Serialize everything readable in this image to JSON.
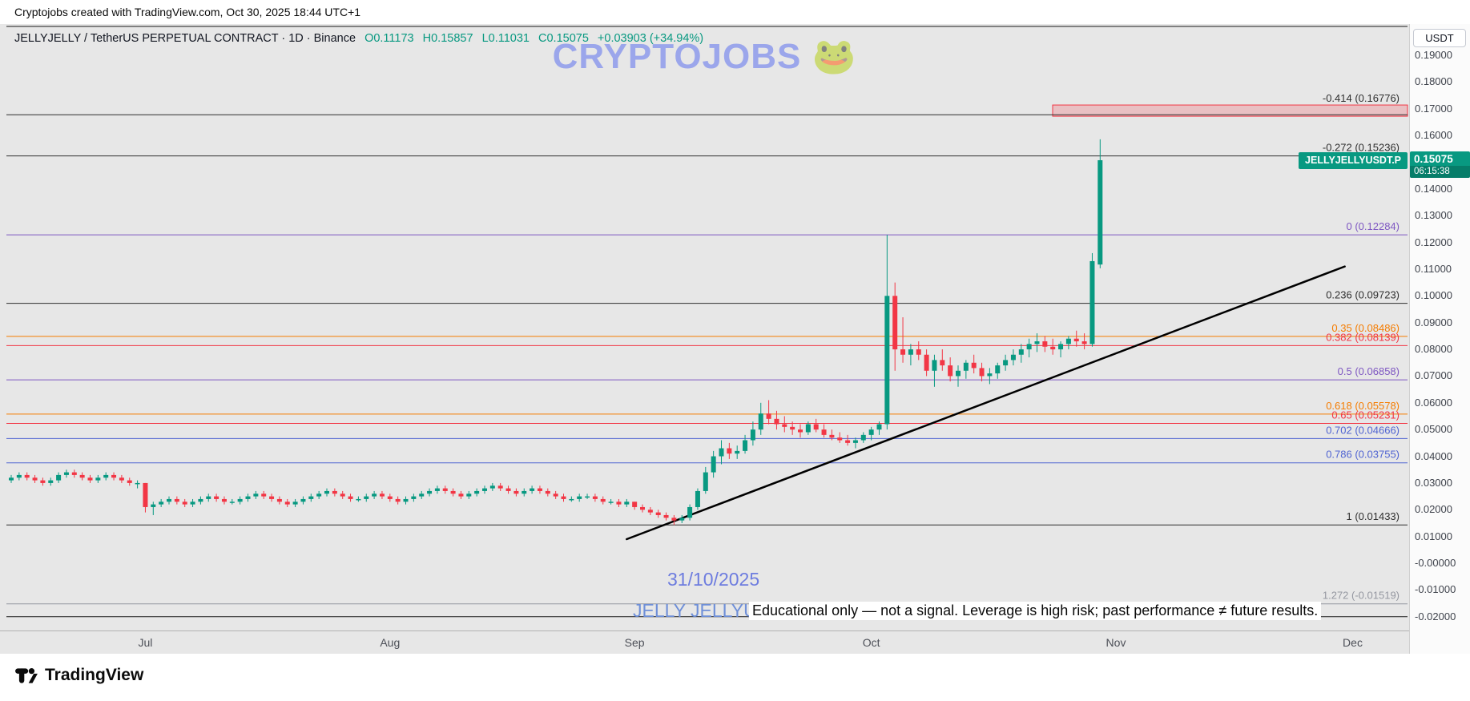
{
  "topbar": {
    "caption": "Cryptojobs created with TradingView.com, Oct 30, 2025 18:44 UTC+1"
  },
  "legend": {
    "symbol": "JELLYJELLY / TetherUS PERPETUAL CONTRACT · 1D · Binance",
    "o": "O0.11173",
    "h": "H0.15857",
    "l": "L0.11031",
    "c": "C0.15075",
    "change": "+0.03903 (+34.94%)"
  },
  "watermark_text": "CRYPTOJOBS 🐸",
  "annotations": {
    "date_label": "31/10/2025",
    "symbol_label": "JELLY JELLYUSDT.P",
    "disclaimer": "Educational only — not a signal. Leverage is high risk; past performance ≠ future results."
  },
  "price_badge": {
    "name": "JELLYJELLYUSDT.P",
    "price": "0.15075",
    "countdown": "06:15:38",
    "color": "#089981"
  },
  "price_axis": {
    "currency": "USDT",
    "ticks": [
      "0.19000",
      "0.18000",
      "0.17000",
      "0.16000",
      "0.14000",
      "0.13000",
      "0.12000",
      "0.11000",
      "0.10000",
      "0.09000",
      "0.08000",
      "0.07000",
      "0.06000",
      "0.05000",
      "0.04000",
      "0.03000",
      "0.02000",
      "0.01000",
      "-0.00000",
      "-0.01000",
      "-0.02000"
    ]
  },
  "footer": {
    "brand": "TradingView"
  },
  "chart_data": {
    "type": "candlestick",
    "title": "JELLYJELLY / TetherUS PERPETUAL CONTRACT · 1D · Binance",
    "timeframe": "1D",
    "exchange": "Binance",
    "price_range_visible": [
      -0.0235,
      0.2015
    ],
    "ohlc_last": {
      "open": 0.11173,
      "high": 0.15857,
      "low": 0.11031,
      "close": 0.15075,
      "change_abs": 0.03903,
      "change_pct": 34.94
    },
    "colors": {
      "up": "#089981",
      "down": "#f23645"
    },
    "x_axis": {
      "labels": [
        {
          "label": "Jul",
          "candle_index": 17
        },
        {
          "label": "Aug",
          "candle_index": 48
        },
        {
          "label": "Sep",
          "candle_index": 79
        },
        {
          "label": "Oct",
          "candle_index": 109
        },
        {
          "label": "Nov",
          "candle_index": 140
        },
        {
          "label": "Dec",
          "candle_index": 170
        }
      ]
    },
    "fib_levels": [
      {
        "label": "-0.414 (0.16776)",
        "ratio": -0.414,
        "price": 0.16776,
        "color": "#2f2f2f"
      },
      {
        "label": "-0.272 (0.15236)",
        "ratio": -0.272,
        "price": 0.15236,
        "color": "#2f2f2f"
      },
      {
        "label": "0 (0.12284)",
        "ratio": 0,
        "price": 0.12284,
        "color": "#7e57c2"
      },
      {
        "label": "0.236 (0.09723)",
        "ratio": 0.236,
        "price": 0.09723,
        "color": "#2f2f2f"
      },
      {
        "label": "0.35 (0.08486)",
        "ratio": 0.35,
        "price": 0.08486,
        "color": "#f57c00"
      },
      {
        "label": "0.382 (0.08139)",
        "ratio": 0.382,
        "price": 0.08139,
        "color": "#f23645"
      },
      {
        "label": "0.5 (0.06858)",
        "ratio": 0.5,
        "price": 0.06858,
        "color": "#7e57c2"
      },
      {
        "label": "0.618 (0.05578)",
        "ratio": 0.618,
        "price": 0.05578,
        "color": "#f57c00"
      },
      {
        "label": "0.65 (0.05231)",
        "ratio": 0.65,
        "price": 0.05231,
        "color": "#f23645"
      },
      {
        "label": "0.702 (0.04666)",
        "ratio": 0.702,
        "price": 0.04666,
        "color": "#4f63d2"
      },
      {
        "label": "0.786 (0.03755)",
        "ratio": 0.786,
        "price": 0.03755,
        "color": "#4f63d2"
      },
      {
        "label": "1 (0.01433)",
        "ratio": 1,
        "price": 0.01433,
        "color": "#2f2f2f"
      },
      {
        "label": "1.272 (-0.01519)",
        "ratio": 1.272,
        "price": -0.01519,
        "color": "#9598a1"
      }
    ],
    "extra_lines": [
      {
        "price": 0.2008,
        "color": "#1a1a1a"
      },
      {
        "price": -0.02,
        "color": "#1a1a1a"
      }
    ],
    "supply_zone": {
      "price_from": 0.1672,
      "price_to": 0.1714,
      "fill": "rgba(242,54,69,0.22)",
      "border": "#f23645"
    },
    "trend_line": {
      "start": {
        "index": 78,
        "price": 0.009
      },
      "end": {
        "index": 169,
        "price": 0.111
      },
      "color": "#000000"
    },
    "candles": [
      [
        0.031,
        0.033,
        0.03,
        0.032
      ],
      [
        0.032,
        0.034,
        0.031,
        0.033
      ],
      [
        0.033,
        0.034,
        0.031,
        0.032
      ],
      [
        0.032,
        0.033,
        0.03,
        0.031
      ],
      [
        0.031,
        0.032,
        0.029,
        0.03
      ],
      [
        0.03,
        0.032,
        0.029,
        0.031
      ],
      [
        0.031,
        0.034,
        0.03,
        0.033
      ],
      [
        0.033,
        0.035,
        0.032,
        0.034
      ],
      [
        0.034,
        0.035,
        0.032,
        0.033
      ],
      [
        0.033,
        0.034,
        0.031,
        0.032
      ],
      [
        0.032,
        0.033,
        0.03,
        0.031
      ],
      [
        0.031,
        0.033,
        0.03,
        0.032
      ],
      [
        0.032,
        0.034,
        0.031,
        0.033
      ],
      [
        0.033,
        0.034,
        0.031,
        0.032
      ],
      [
        0.032,
        0.033,
        0.03,
        0.031
      ],
      [
        0.031,
        0.032,
        0.029,
        0.03
      ],
      [
        0.03,
        0.031,
        0.028,
        0.03
      ],
      [
        0.03,
        0.03,
        0.019,
        0.021
      ],
      [
        0.021,
        0.023,
        0.018,
        0.022
      ],
      [
        0.022,
        0.024,
        0.021,
        0.023
      ],
      [
        0.023,
        0.025,
        0.022,
        0.024
      ],
      [
        0.024,
        0.025,
        0.022,
        0.023
      ],
      [
        0.023,
        0.024,
        0.021,
        0.022
      ],
      [
        0.022,
        0.024,
        0.021,
        0.023
      ],
      [
        0.023,
        0.025,
        0.022,
        0.024
      ],
      [
        0.024,
        0.026,
        0.023,
        0.025
      ],
      [
        0.025,
        0.026,
        0.023,
        0.024
      ],
      [
        0.024,
        0.025,
        0.022,
        0.023
      ],
      [
        0.023,
        0.024,
        0.022,
        0.023
      ],
      [
        0.023,
        0.025,
        0.022,
        0.024
      ],
      [
        0.024,
        0.026,
        0.023,
        0.025
      ],
      [
        0.025,
        0.027,
        0.024,
        0.026
      ],
      [
        0.026,
        0.027,
        0.024,
        0.025
      ],
      [
        0.025,
        0.026,
        0.023,
        0.024
      ],
      [
        0.024,
        0.025,
        0.022,
        0.023
      ],
      [
        0.023,
        0.024,
        0.021,
        0.022
      ],
      [
        0.022,
        0.024,
        0.021,
        0.023
      ],
      [
        0.023,
        0.025,
        0.022,
        0.024
      ],
      [
        0.024,
        0.026,
        0.023,
        0.025
      ],
      [
        0.025,
        0.027,
        0.024,
        0.026
      ],
      [
        0.026,
        0.028,
        0.025,
        0.027
      ],
      [
        0.027,
        0.028,
        0.025,
        0.026
      ],
      [
        0.026,
        0.027,
        0.024,
        0.025
      ],
      [
        0.025,
        0.026,
        0.023,
        0.024
      ],
      [
        0.024,
        0.025,
        0.023,
        0.024
      ],
      [
        0.024,
        0.026,
        0.023,
        0.025
      ],
      [
        0.025,
        0.027,
        0.024,
        0.026
      ],
      [
        0.026,
        0.027,
        0.024,
        0.025
      ],
      [
        0.025,
        0.026,
        0.023,
        0.024
      ],
      [
        0.024,
        0.025,
        0.022,
        0.023
      ],
      [
        0.023,
        0.025,
        0.022,
        0.024
      ],
      [
        0.024,
        0.026,
        0.023,
        0.025
      ],
      [
        0.025,
        0.027,
        0.024,
        0.026
      ],
      [
        0.026,
        0.028,
        0.025,
        0.027
      ],
      [
        0.027,
        0.029,
        0.026,
        0.028
      ],
      [
        0.028,
        0.029,
        0.026,
        0.027
      ],
      [
        0.027,
        0.028,
        0.025,
        0.026
      ],
      [
        0.026,
        0.027,
        0.024,
        0.025
      ],
      [
        0.025,
        0.027,
        0.024,
        0.026
      ],
      [
        0.026,
        0.028,
        0.025,
        0.027
      ],
      [
        0.027,
        0.029,
        0.026,
        0.028
      ],
      [
        0.028,
        0.03,
        0.027,
        0.029
      ],
      [
        0.029,
        0.03,
        0.027,
        0.028
      ],
      [
        0.028,
        0.029,
        0.026,
        0.027
      ],
      [
        0.027,
        0.028,
        0.025,
        0.026
      ],
      [
        0.026,
        0.028,
        0.025,
        0.027
      ],
      [
        0.027,
        0.029,
        0.026,
        0.028
      ],
      [
        0.028,
        0.029,
        0.026,
        0.027
      ],
      [
        0.027,
        0.028,
        0.025,
        0.026
      ],
      [
        0.026,
        0.027,
        0.024,
        0.025
      ],
      [
        0.025,
        0.026,
        0.023,
        0.024
      ],
      [
        0.024,
        0.025,
        0.023,
        0.024
      ],
      [
        0.024,
        0.026,
        0.023,
        0.025
      ],
      [
        0.025,
        0.026,
        0.024,
        0.025
      ],
      [
        0.025,
        0.026,
        0.023,
        0.024
      ],
      [
        0.024,
        0.025,
        0.022,
        0.023
      ],
      [
        0.023,
        0.024,
        0.022,
        0.023
      ],
      [
        0.023,
        0.024,
        0.021,
        0.022
      ],
      [
        0.022,
        0.024,
        0.021,
        0.023
      ],
      [
        0.023,
        0.023,
        0.02,
        0.021
      ],
      [
        0.021,
        0.022,
        0.019,
        0.02
      ],
      [
        0.02,
        0.021,
        0.018,
        0.019
      ],
      [
        0.019,
        0.02,
        0.017,
        0.018
      ],
      [
        0.018,
        0.019,
        0.016,
        0.017
      ],
      [
        0.017,
        0.018,
        0.0143,
        0.016
      ],
      [
        0.016,
        0.018,
        0.015,
        0.017
      ],
      [
        0.017,
        0.022,
        0.016,
        0.021
      ],
      [
        0.021,
        0.028,
        0.02,
        0.027
      ],
      [
        0.027,
        0.036,
        0.026,
        0.034
      ],
      [
        0.034,
        0.042,
        0.032,
        0.04
      ],
      [
        0.04,
        0.046,
        0.037,
        0.043
      ],
      [
        0.043,
        0.045,
        0.039,
        0.041
      ],
      [
        0.041,
        0.044,
        0.039,
        0.042
      ],
      [
        0.042,
        0.048,
        0.041,
        0.046
      ],
      [
        0.046,
        0.053,
        0.044,
        0.05
      ],
      [
        0.05,
        0.06,
        0.048,
        0.056
      ],
      [
        0.056,
        0.061,
        0.052,
        0.054
      ],
      [
        0.054,
        0.057,
        0.05,
        0.052
      ],
      [
        0.052,
        0.055,
        0.049,
        0.051
      ],
      [
        0.051,
        0.053,
        0.048,
        0.05
      ],
      [
        0.05,
        0.052,
        0.047,
        0.049
      ],
      [
        0.049,
        0.053,
        0.048,
        0.052
      ],
      [
        0.052,
        0.054,
        0.049,
        0.05
      ],
      [
        0.05,
        0.052,
        0.047,
        0.048
      ],
      [
        0.048,
        0.05,
        0.046,
        0.047
      ],
      [
        0.047,
        0.049,
        0.045,
        0.046
      ],
      [
        0.046,
        0.048,
        0.044,
        0.045
      ],
      [
        0.045,
        0.047,
        0.043,
        0.046
      ],
      [
        0.046,
        0.049,
        0.045,
        0.048
      ],
      [
        0.048,
        0.051,
        0.046,
        0.05
      ],
      [
        0.05,
        0.053,
        0.048,
        0.052
      ],
      [
        0.052,
        0.12284,
        0.05,
        0.1
      ],
      [
        0.1,
        0.105,
        0.072,
        0.08
      ],
      [
        0.08,
        0.092,
        0.075,
        0.078
      ],
      [
        0.078,
        0.082,
        0.074,
        0.08
      ],
      [
        0.08,
        0.083,
        0.076,
        0.078
      ],
      [
        0.078,
        0.08,
        0.07,
        0.072
      ],
      [
        0.072,
        0.078,
        0.066,
        0.076
      ],
      [
        0.076,
        0.08,
        0.072,
        0.074
      ],
      [
        0.074,
        0.077,
        0.068,
        0.07
      ],
      [
        0.07,
        0.074,
        0.066,
        0.072
      ],
      [
        0.072,
        0.076,
        0.069,
        0.075
      ],
      [
        0.075,
        0.078,
        0.071,
        0.073
      ],
      [
        0.073,
        0.075,
        0.068,
        0.07
      ],
      [
        0.07,
        0.073,
        0.067,
        0.071
      ],
      [
        0.071,
        0.075,
        0.069,
        0.074
      ],
      [
        0.074,
        0.078,
        0.072,
        0.076
      ],
      [
        0.076,
        0.08,
        0.074,
        0.078
      ],
      [
        0.078,
        0.082,
        0.075,
        0.08
      ],
      [
        0.08,
        0.084,
        0.077,
        0.082
      ],
      [
        0.082,
        0.086,
        0.079,
        0.083
      ],
      [
        0.083,
        0.085,
        0.079,
        0.081
      ],
      [
        0.081,
        0.084,
        0.078,
        0.08
      ],
      [
        0.08,
        0.083,
        0.077,
        0.082
      ],
      [
        0.082,
        0.085,
        0.08,
        0.084
      ],
      [
        0.084,
        0.087,
        0.081,
        0.083
      ],
      [
        0.083,
        0.086,
        0.08,
        0.082
      ],
      [
        0.082,
        0.116,
        0.081,
        0.113
      ],
      [
        0.11173,
        0.15857,
        0.11031,
        0.15075
      ]
    ]
  }
}
